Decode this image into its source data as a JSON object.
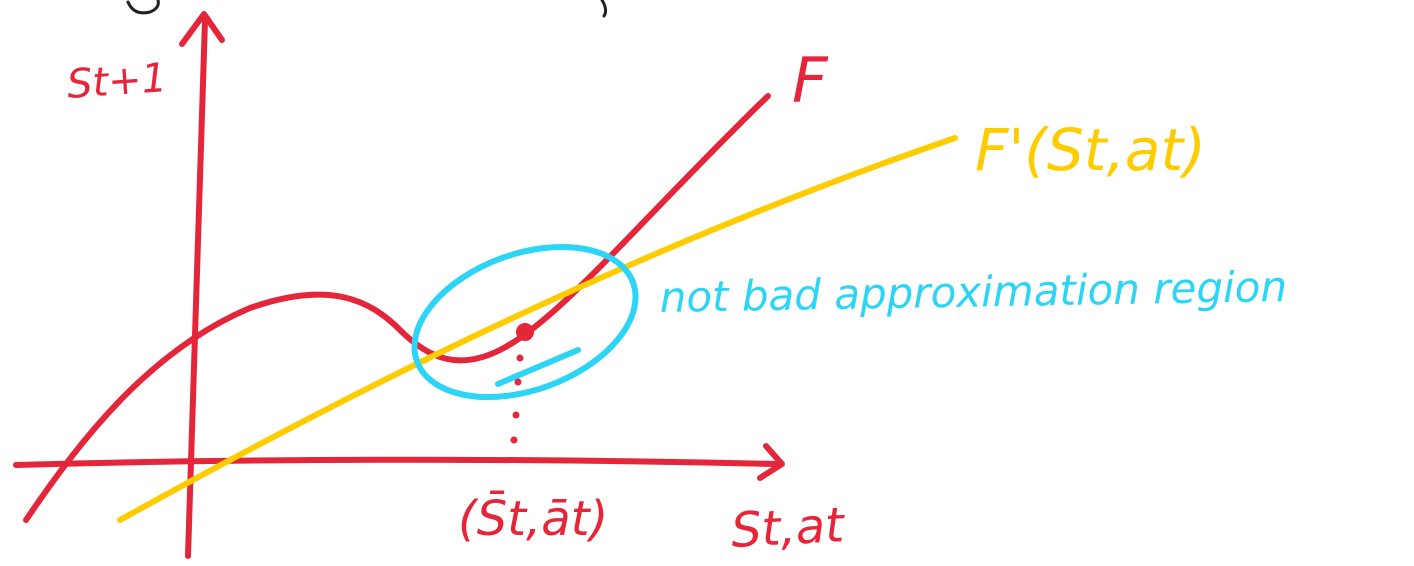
{
  "colors": {
    "axes": "#e5253a",
    "function_curve": "#e5253a",
    "approximation_line": "#ffcc00",
    "region": "#2cd5f5",
    "crop_text": "#222222"
  },
  "labels": {
    "y_axis": "St+1",
    "x_axis": "St,at",
    "curve": "F",
    "tangent_line": "F'(St,at)",
    "operating_point": "(S̄t,āt)",
    "region": "not bad approximation region"
  }
}
